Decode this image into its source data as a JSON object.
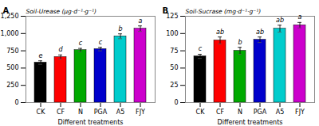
{
  "chart_data": [
    {
      "type": "bar",
      "title": "A",
      "ylabel": "Soil-Urease (μg·d⁻¹·g⁻¹)",
      "xlabel": "Different treatments",
      "categories": [
        "CK",
        "CF",
        "N",
        "PGA",
        "A5",
        "FJY"
      ],
      "values": [
        580,
        660,
        760,
        775,
        960,
        1070
      ],
      "errors": [
        25,
        30,
        25,
        25,
        35,
        40
      ],
      "letters": [
        "e",
        "d",
        "c",
        "c",
        "b",
        "a"
      ],
      "colors": [
        "#000000",
        "#ff0000",
        "#00aa00",
        "#0000cc",
        "#00cccc",
        "#cc00cc"
      ],
      "ylim": [
        0,
        1250
      ],
      "yticks": [
        0,
        250,
        500,
        750,
        1000,
        1250
      ]
    },
    {
      "type": "bar",
      "title": "B",
      "ylabel": "Soil-Sucrase (mg·d⁻¹·g⁻¹)",
      "xlabel": "Different treatments",
      "categories": [
        "CK",
        "CF",
        "N",
        "PGA",
        "A5",
        "FJY"
      ],
      "values": [
        67,
        90,
        75,
        91,
        107,
        112
      ],
      "errors": [
        3,
        5,
        5,
        4,
        5,
        4
      ],
      "letters": [
        "c",
        "ab",
        "b",
        "ab",
        "ab",
        "a"
      ],
      "colors": [
        "#000000",
        "#ff0000",
        "#00aa00",
        "#0000cc",
        "#00cccc",
        "#cc00cc"
      ],
      "ylim": [
        0,
        125
      ],
      "yticks": [
        0,
        25,
        50,
        75,
        100,
        125
      ]
    }
  ]
}
